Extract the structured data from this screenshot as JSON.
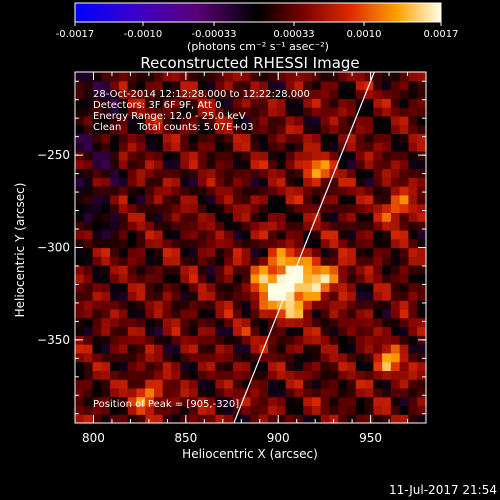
{
  "chart_data": {
    "type": "heatmap",
    "title": "Reconstructed RHESSI Image",
    "xlabel": "Heliocentric X (arcsec)",
    "ylabel": "Heliocentric Y (arcsec)",
    "xlim": [
      790,
      980
    ],
    "ylim": [
      -395,
      -205
    ],
    "x_ticks": [
      800,
      850,
      900,
      950
    ],
    "y_ticks": [
      -350,
      -300,
      -250
    ],
    "colorbar": {
      "range": [
        -0.0017,
        0.0017
      ],
      "ticks": [
        "-0.0017",
        "-0.0010",
        "-0.00033",
        "0.00033",
        "0.0010",
        "0.0017"
      ],
      "unit": "(photons cm⁻² s⁻¹ asec⁻²)"
    },
    "annotations": [
      "28-Oct-2014 12:12:28.000 to 12:22:28.000",
      "Detectors: 3F 6F 9F, Att 0",
      "Energy Range: 12.0 - 25.0 keV",
      "Clean     Total counts: 5.07E+03"
    ],
    "peak_label": "Position of Peak = [905,-320]",
    "peak": [
      905,
      -320
    ],
    "secondary_sources": [
      [
        920,
        -258
      ],
      [
        928,
        -315
      ],
      [
        965,
        -278
      ],
      [
        830,
        -380
      ],
      [
        960,
        -362
      ]
    ],
    "limb_line": [
      [
        876,
        -395
      ],
      [
        952,
        -205
      ]
    ],
    "timestamp": "11-Jul-2017 21:54"
  }
}
